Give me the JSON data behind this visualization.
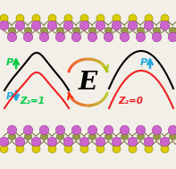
{
  "fig_width": 1.97,
  "fig_height": 1.89,
  "dpi": 100,
  "bg_color": "#f2efe8",
  "atom_colors": {
    "purple": "#cc66cc",
    "yellow": "#ddcc00",
    "olive": "#999944"
  },
  "E_label": "E",
  "Z2_1_label": "Z₂=1",
  "Z2_0_label": "Z₂=0",
  "P_up_color": "#00cc44",
  "P_down_color": "#22aadd"
}
